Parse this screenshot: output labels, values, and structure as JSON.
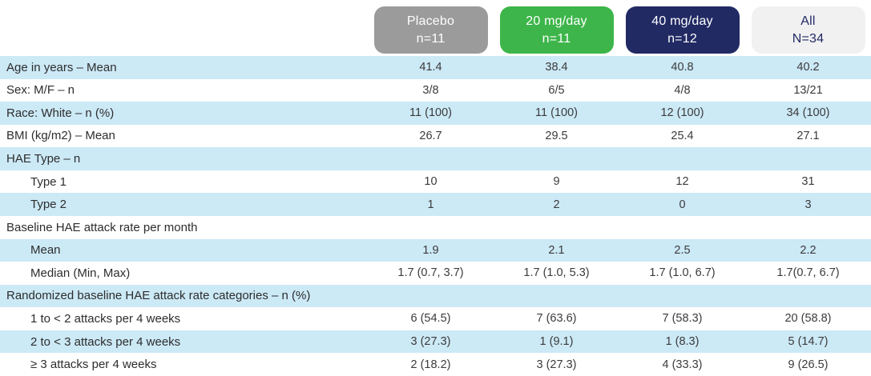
{
  "table": {
    "columns": [
      {
        "label": "Placebo",
        "sub": "n=11",
        "color": "#9b9b9b",
        "text_color": "#ffffff"
      },
      {
        "label": "20 mg/day",
        "sub": "n=11",
        "color": "#3db54a",
        "text_color": "#ffffff"
      },
      {
        "label": "40 mg/day",
        "sub": "n=12",
        "color": "#212a63",
        "text_color": "#ffffff"
      },
      {
        "label": "All",
        "sub": "N=34",
        "color": "#f1f1f2",
        "text_color": "#212a63"
      }
    ],
    "rows": [
      {
        "label": "Age in years – Mean",
        "indent": false,
        "values": [
          "41.4",
          "38.4",
          "40.8",
          "40.2"
        ]
      },
      {
        "label": "Sex: M/F – n",
        "indent": false,
        "values": [
          "3/8",
          "6/5",
          "4/8",
          "13/21"
        ]
      },
      {
        "label": "Race: White – n (%)",
        "indent": false,
        "values": [
          "11 (100)",
          "11 (100)",
          "12 (100)",
          "34 (100)"
        ]
      },
      {
        "label": "BMI (kg/m2) – Mean",
        "indent": false,
        "values": [
          "26.7",
          "29.5",
          "25.4",
          "27.1"
        ]
      },
      {
        "label": "HAE Type – n",
        "indent": false,
        "values": [
          "",
          "",
          "",
          ""
        ]
      },
      {
        "label": "Type 1",
        "indent": true,
        "values": [
          "10",
          "9",
          "12",
          "31"
        ]
      },
      {
        "label": "Type 2",
        "indent": true,
        "values": [
          "1",
          "2",
          "0",
          "3"
        ]
      },
      {
        "label": "Baseline HAE attack rate per month",
        "indent": false,
        "values": [
          "",
          "",
          "",
          ""
        ]
      },
      {
        "label": "Mean",
        "indent": true,
        "values": [
          "1.9",
          "2.1",
          "2.5",
          "2.2"
        ]
      },
      {
        "label": "Median (Min, Max)",
        "indent": true,
        "values": [
          "1.7 (0.7, 3.7)",
          "1.7 (1.0, 5.3)",
          "1.7 (1.0, 6.7)",
          "1.7(0.7, 6.7)"
        ]
      },
      {
        "label": "Randomized baseline HAE attack rate categories – n (%)",
        "indent": false,
        "values": [
          "",
          "",
          "",
          ""
        ]
      },
      {
        "label": "1 to < 2 attacks per 4 weeks",
        "indent": true,
        "values": [
          "6 (54.5)",
          "7 (63.6)",
          "7 (58.3)",
          "20 (58.8)"
        ]
      },
      {
        "label": "2 to < 3 attacks per 4 weeks",
        "indent": true,
        "values": [
          "3 (27.3)",
          "1 (9.1)",
          "1 (8.3)",
          "5 (14.7)"
        ]
      },
      {
        "label": "≥ 3 attacks per 4 weeks",
        "indent": true,
        "values": [
          "2 (18.2)",
          "3 (27.3)",
          "4 (33.3)",
          "9 (26.5)"
        ]
      }
    ],
    "colors": {
      "row_stripe": "#cce9f6",
      "body_text": "#333333"
    }
  }
}
